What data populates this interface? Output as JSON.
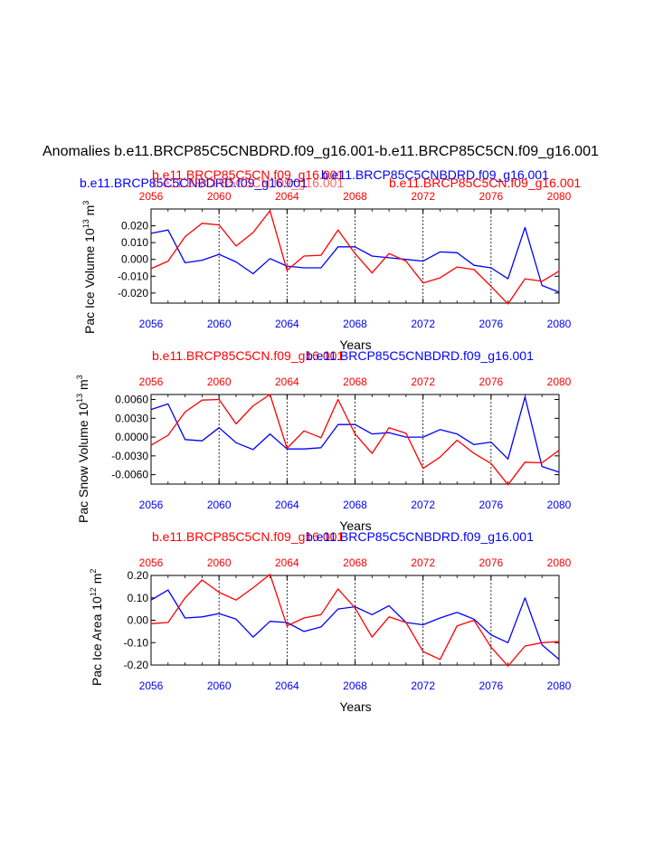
{
  "page": {
    "title": "Anomalies b.e11.BRCP85C5CNBDRD.f09_g16.001-b.e11.BRCP85C5CN.f09_g16.001"
  },
  "colors": {
    "blue": "#0000ff",
    "red": "#ff0000",
    "black": "#000000"
  },
  "chart_data": [
    {
      "type": "line",
      "title_blue": "b.e11.BRCP85C5CNBDRD.f09_g16.001",
      "title_red": "b.e11.BRCP85C5CN.f09_g16.001",
      "title_left_blue": "b.e11.BRCP85C5CNBDRD.f09_g16.001",
      "title_left_red": "b.e11.BRCP85C5CN.f09_g16.001",
      "title_right_red": "b.e11.BRCP85C5CN.f09_g16.001",
      "ylabel": "Pac Ice Volume 10",
      "ylabel_exp": "13",
      "ylabel_unit": " m",
      "ylabel_unit_exp": "3",
      "xlabel": "Years",
      "xlim": [
        2056,
        2080
      ],
      "ylim": [
        -0.026,
        0.03
      ],
      "yticks": [
        0.02,
        0.01,
        0.0,
        -0.01,
        -0.02
      ],
      "yticklabels": [
        "0.020",
        "0.010",
        "0.000",
        "-0.010",
        "-0.020"
      ],
      "xticks": [
        2056,
        2060,
        2064,
        2068,
        2072,
        2076,
        2080
      ],
      "xticklabels": [
        "2056",
        "2060",
        "2064",
        "2068",
        "2072",
        "2076",
        "2080"
      ],
      "grid_x": [
        2060,
        2064,
        2068,
        2072,
        2076
      ],
      "x": [
        2056,
        2057,
        2058,
        2059,
        2060,
        2061,
        2062,
        2063,
        2064,
        2065,
        2066,
        2067,
        2068,
        2069,
        2070,
        2071,
        2072,
        2073,
        2074,
        2075,
        2076,
        2077,
        2078,
        2079,
        2080
      ],
      "series": [
        {
          "name": "b.e11.BRCP85C5CNBDRD.f09_g16.001",
          "color": "#0000ff",
          "values": [
            0.0155,
            0.0175,
            -0.002,
            -0.0005,
            0.003,
            -0.0015,
            -0.0085,
            0.0005,
            -0.004,
            -0.005,
            -0.005,
            0.0075,
            0.0075,
            0.002,
            0.001,
            0.0,
            -0.001,
            0.0045,
            0.004,
            -0.0035,
            -0.005,
            -0.0115,
            0.019,
            -0.0155,
            -0.0195
          ]
        },
        {
          "name": "b.e11.BRCP85C5CN.f09_g16.001",
          "color": "#ff0000",
          "values": [
            -0.0055,
            -0.001,
            0.0135,
            0.0215,
            0.0205,
            0.008,
            0.016,
            0.029,
            -0.0065,
            0.002,
            0.0025,
            0.0175,
            0.0035,
            -0.008,
            0.0035,
            -0.001,
            -0.014,
            -0.011,
            -0.0045,
            -0.006,
            -0.016,
            -0.0265,
            -0.0115,
            -0.013,
            -0.007
          ]
        }
      ]
    },
    {
      "type": "line",
      "title_red": "b.e11.BRCP85C5CN.f09_g16.001",
      "title_blue": "b.e11.BRCP85C5CNBDRD.f09_g16.001",
      "ylabel": "Pac Snow Volume 10",
      "ylabel_exp": "13",
      "ylabel_unit": " m",
      "ylabel_unit_exp": "3",
      "xlabel": "Years",
      "xlim": [
        2056,
        2080
      ],
      "ylim": [
        -0.0075,
        0.0068
      ],
      "yticks": [
        0.006,
        0.003,
        0.0,
        -0.003,
        -0.006
      ],
      "yticklabels": [
        "0.0060",
        "0.0030",
        "0.0000",
        "-0.0030",
        "-0.0060"
      ],
      "xticks": [
        2056,
        2060,
        2064,
        2068,
        2072,
        2076,
        2080
      ],
      "xticklabels": [
        "2056",
        "2060",
        "2064",
        "2068",
        "2072",
        "2076",
        "2080"
      ],
      "grid_x": [
        2060,
        2064,
        2068,
        2072,
        2076
      ],
      "x": [
        2056,
        2057,
        2058,
        2059,
        2060,
        2061,
        2062,
        2063,
        2064,
        2065,
        2066,
        2067,
        2068,
        2069,
        2070,
        2071,
        2072,
        2073,
        2074,
        2075,
        2076,
        2077,
        2078,
        2079,
        2080
      ],
      "series": [
        {
          "name": "b.e11.BRCP85C5CNBDRD.f09_g16.001",
          "color": "#0000ff",
          "values": [
            0.0044,
            0.0053,
            -0.0004,
            -0.0006,
            0.0015,
            -0.0009,
            -0.002,
            0.0005,
            -0.0019,
            -0.0019,
            -0.0017,
            0.002,
            0.002,
            0.0005,
            0.0007,
            0.0,
            0.0,
            0.0012,
            0.0005,
            -0.0012,
            -0.0008,
            -0.0035,
            0.0064,
            -0.0047,
            -0.0056
          ]
        },
        {
          "name": "b.e11.BRCP85C5CN.f09_g16.001",
          "color": "#ff0000",
          "values": [
            -0.0013,
            0.0003,
            0.004,
            0.0059,
            0.006,
            0.0021,
            0.005,
            0.0068,
            -0.0018,
            0.001,
            -0.0001,
            0.006,
            0.0005,
            -0.0026,
            0.0015,
            0.0006,
            -0.005,
            -0.0032,
            -0.0005,
            -0.0026,
            -0.0042,
            -0.0076,
            -0.004,
            -0.0041,
            -0.0021
          ]
        }
      ]
    },
    {
      "type": "line",
      "title_red": "b.e11.BRCP85C5CN.f09_g16.001",
      "title_blue": "b.e11.BRCP85C5CNBDRD.f09_g16.001",
      "ylabel": "Pac Ice Area 10",
      "ylabel_exp": "12",
      "ylabel_unit": " m",
      "ylabel_unit_exp": "2",
      "xlabel": "Years",
      "xlim": [
        2056,
        2080
      ],
      "ylim": [
        -0.2,
        0.2
      ],
      "yticks": [
        0.2,
        0.1,
        0.0,
        -0.1,
        -0.2
      ],
      "yticklabels": [
        "0.20",
        "0.10",
        "0.00",
        "-0.10",
        "-0.20"
      ],
      "xticks": [
        2056,
        2060,
        2064,
        2068,
        2072,
        2076,
        2080
      ],
      "xticklabels": [
        "2056",
        "2060",
        "2064",
        "2068",
        "2072",
        "2076",
        "2080"
      ],
      "grid_x": [
        2060,
        2064,
        2068,
        2072,
        2076
      ],
      "x": [
        2056,
        2057,
        2058,
        2059,
        2060,
        2061,
        2062,
        2063,
        2064,
        2065,
        2066,
        2067,
        2068,
        2069,
        2070,
        2071,
        2072,
        2073,
        2074,
        2075,
        2076,
        2077,
        2078,
        2079,
        2080
      ],
      "series": [
        {
          "name": "b.e11.BRCP85C5CNBDRD.f09_g16.001",
          "color": "#0000ff",
          "values": [
            0.09,
            0.135,
            0.01,
            0.015,
            0.03,
            0.005,
            -0.075,
            -0.005,
            -0.01,
            -0.05,
            -0.03,
            0.05,
            0.06,
            0.025,
            0.065,
            -0.01,
            -0.02,
            0.01,
            0.035,
            0.005,
            -0.065,
            -0.1,
            0.1,
            -0.11,
            -0.175
          ]
        },
        {
          "name": "b.e11.BRCP85C5CN.f09_g16.001",
          "color": "#ff0000",
          "values": [
            -0.015,
            -0.01,
            0.1,
            0.18,
            0.125,
            0.09,
            0.145,
            0.205,
            -0.025,
            0.01,
            0.025,
            0.14,
            0.055,
            -0.075,
            0.015,
            -0.01,
            -0.14,
            -0.175,
            -0.025,
            0.0,
            -0.12,
            -0.205,
            -0.115,
            -0.1,
            -0.095
          ]
        }
      ]
    }
  ]
}
